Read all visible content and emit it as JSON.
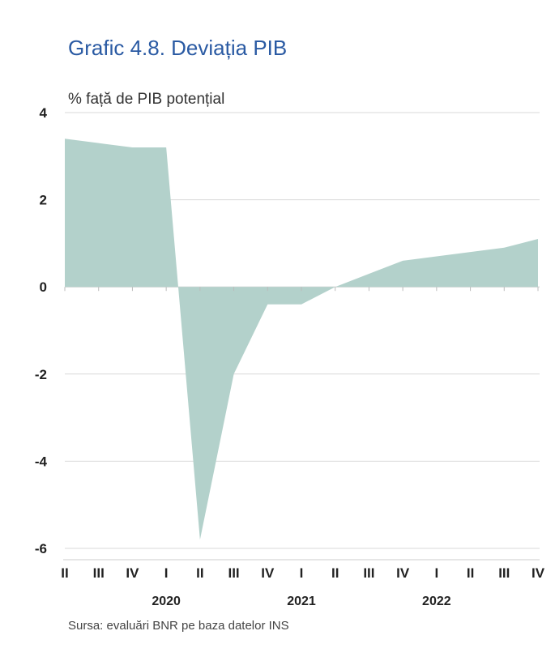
{
  "title": "Grafic 4.8. Deviația PIB",
  "unit_label": "% față de PIB potențial",
  "source": "Sursa: evaluări BNR pe baza datelor INS",
  "colors": {
    "area": "#b3d1cb",
    "grid": "#d9d9d9",
    "title": "#2a5aa3"
  },
  "chart_data": {
    "type": "area",
    "title": "Grafic 4.8. Deviația PIB",
    "ylabel": "% față de PIB potențial",
    "xlabel": "",
    "ylim": [
      -6,
      4
    ],
    "yticks": [
      "4",
      "2",
      "0",
      "-2",
      "-4",
      "-6"
    ],
    "grid": true,
    "x": [
      "II",
      "III",
      "IV",
      "I",
      "II",
      "III",
      "IV",
      "I",
      "II",
      "III",
      "IV",
      "I",
      "II",
      "III",
      "IV"
    ],
    "years": [
      "2020",
      "2021",
      "2022"
    ],
    "series": [
      {
        "values": [
          3.4,
          3.3,
          3.2,
          3.2,
          -5.8,
          -2.0,
          -0.4,
          -0.4,
          0.0,
          0.3,
          0.6,
          0.7,
          0.8,
          0.9,
          1.1
        ]
      }
    ]
  }
}
